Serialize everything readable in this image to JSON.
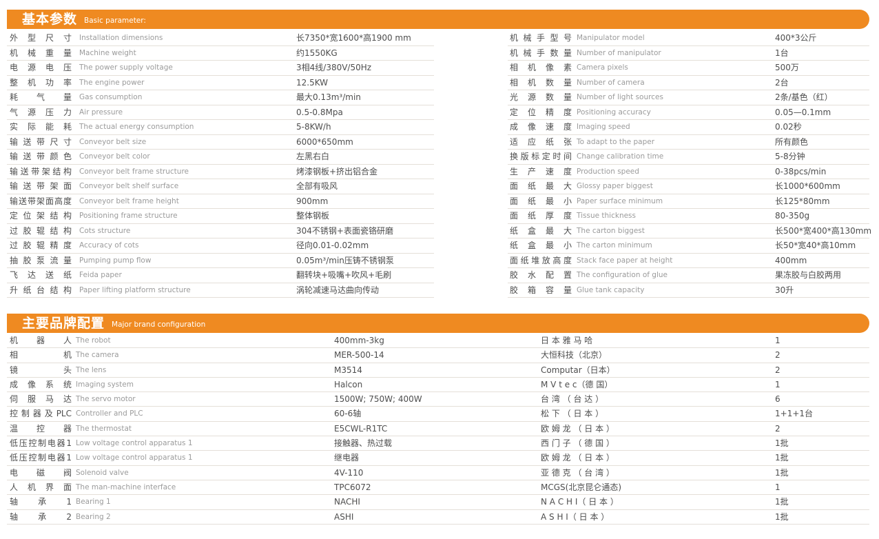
{
  "accent_color": "#ef8a21",
  "divider_color": "#e4dfd8",
  "section1": {
    "title_zh": "基本参数",
    "title_en": "Basic parameter:",
    "left_rows": [
      {
        "label": "外型尺寸",
        "en": "Installation dimensions",
        "value": "长7350*宽1600*高1900 mm"
      },
      {
        "label": "机械重量",
        "en": "Machine weight",
        "value": "约1550KG"
      },
      {
        "label": "电源电压",
        "en": "The power supply voltage",
        "value": "3相4线/380V/50Hz"
      },
      {
        "label": "整机功率",
        "en": "The engine power",
        "value": "12.5KW"
      },
      {
        "label": "耗气量",
        "en": "Gas consumption",
        "value": "最大0.13m³/min"
      },
      {
        "label": "气源压力",
        "en": "Air pressure",
        "value": "0.5-0.8Mpa"
      },
      {
        "label": "实际能耗",
        "en": "The actual energy consumption",
        "value": "5-8KW/h"
      },
      {
        "label": "输送带尺寸",
        "en": "Conveyor belt size",
        "value": "6000*650mm"
      },
      {
        "label": "输送带颜色",
        "en": "Conveyor belt color",
        "value": "左黑右白"
      },
      {
        "label": "输送带架结构",
        "en": "Conveyor belt frame structure",
        "value": "烤漆钢板+挤出铝合金"
      },
      {
        "label": "输送带架面",
        "en": "Conveyor belt shelf surface",
        "value": "全部有吸风"
      },
      {
        "label": "输送带架面高度",
        "en": "Conveyor belt frame height",
        "value": "900mm"
      },
      {
        "label": "定位架结构",
        "en": "Positioning frame structure",
        "value": "整体钢板"
      },
      {
        "label": "过胶辊结构",
        "en": "Cots structure",
        "value": "304不锈钢+表面瓷铬研磨"
      },
      {
        "label": "过胶辊精度",
        "en": "Accuracy of cots",
        "value": "径向0.01-0.02mm"
      },
      {
        "label": "抽胶泵流量",
        "en": "Pumping pump flow",
        "value": "0.05m³/min压铸不锈钢泵"
      },
      {
        "label": "飞达送纸",
        "en": "Feida paper",
        "value": "翻转块+吸嘴+吹风+毛刷"
      },
      {
        "label": "升纸台结构",
        "en": "Paper lifting platform structure",
        "value": "涡轮减速马达曲向传动"
      }
    ],
    "right_rows": [
      {
        "label": "机械手型号",
        "en": "Manipulator model",
        "value": "400*3公斤"
      },
      {
        "label": "机械手数量",
        "en": "Number of manipulator",
        "value": "1台"
      },
      {
        "label": "相机像素",
        "en": "Camera pixels",
        "value": "500万"
      },
      {
        "label": "相机数量",
        "en": "Number of camera",
        "value": "2台"
      },
      {
        "label": "光源数量",
        "en": "Number of light sources",
        "value": "2条/基色（红）"
      },
      {
        "label": "定位精度",
        "en": "Positioning accuracy",
        "value": "0.05—0.1mm"
      },
      {
        "label": "成像速度",
        "en": "Imaging speed",
        "value": "0.02秒"
      },
      {
        "label": "适应纸张",
        "en": "To adapt to the paper",
        "value": "所有颜色"
      },
      {
        "label": "换版标定时间",
        "en": "Change calibration time",
        "value": "5-8分钟"
      },
      {
        "label": "生产速度",
        "en": "Production speed",
        "value": "0-38pcs/min"
      },
      {
        "label": "面纸最大",
        "en": "Glossy paper biggest",
        "value": "长1000*600mm"
      },
      {
        "label": "面纸最小",
        "en": "Paper surface minimum",
        "value": "长125*80mm"
      },
      {
        "label": "面纸厚度",
        "en": "Tissue thickness",
        "value": "80-350g"
      },
      {
        "label": "纸盒最大",
        "en": "The carton biggest",
        "value": "长500*宽400*高130mm"
      },
      {
        "label": "纸盒最小",
        "en": "The carton minimum",
        "value": "长50*宽40*高10mm"
      },
      {
        "label": "面纸堆放高度",
        "en": "Stack face paper at height",
        "value": "400mm"
      },
      {
        "label": "胶水配置",
        "en": "The configuration of glue",
        "value": "果冻胶与白胶两用"
      },
      {
        "label": "胶箱容量",
        "en": "Glue tank capacity",
        "value": "30升"
      }
    ]
  },
  "section2": {
    "title_zh": "主要品牌配置",
    "title_en": "Major brand configuration",
    "rows": [
      {
        "label": "机器人",
        "en": "The robot",
        "model": "400mm-3kg",
        "brand": "日 本 雅 马 哈",
        "qty": "1"
      },
      {
        "label": "相机",
        "en": "The camera",
        "model": "MER-500-14",
        "brand": "大恒科技（北京）",
        "qty": "2"
      },
      {
        "label": "镜头",
        "en": "The lens",
        "model": "M3514",
        "brand": "Computar（日本）",
        "qty": "2"
      },
      {
        "label": "成像系统",
        "en": "Imaging system",
        "model": "Halcon",
        "brand": "M V t e c（德 国）",
        "qty": "1"
      },
      {
        "label": "伺服马达",
        "en": "The servo motor",
        "model": "1500W; 750W; 400W",
        "brand": "台 湾 （ 台 达 ）",
        "qty": "6"
      },
      {
        "label": "控制器及PLC",
        "en": "Controller and PLC",
        "model": "60-6轴",
        "brand": "松 下 （ 日 本 ）",
        "qty": "1+1+1台"
      },
      {
        "label": "温控器",
        "en": "The thermostat",
        "model": "E5CWL-R1TC",
        "brand": "欧 姆 龙 （ 日 本 ）",
        "qty": "2"
      },
      {
        "label": "低压控制电器1",
        "en": "Low voltage control apparatus 1",
        "model": "接触器、热过载",
        "brand": "西 门 子 （ 德 国 ）",
        "qty": "1批"
      },
      {
        "label": "低压控制电器1",
        "en": "Low voltage control apparatus 1",
        "model": "继电器",
        "brand": "欧 姆 龙 （ 日 本 ）",
        "qty": "1批"
      },
      {
        "label": "电磁阀",
        "en": "Solenoid valve",
        "model": "4V-110",
        "brand": "亚 德 克 （ 台 湾 ）",
        "qty": "1批"
      },
      {
        "label": "人机界面",
        "en": "The man-machine interface",
        "model": "TPC6072",
        "brand": "MCGS(北京昆仑通态)",
        "qty": "1"
      },
      {
        "label": "轴承1",
        "en": "Bearing 1",
        "model": "NACHI",
        "brand": "N A C H I（ 日 本 ）",
        "qty": "1批"
      },
      {
        "label": "轴承2",
        "en": "Bearing 2",
        "model": "ASHI",
        "brand": "A S H I（ 日 本 ）",
        "qty": "1批"
      }
    ]
  }
}
